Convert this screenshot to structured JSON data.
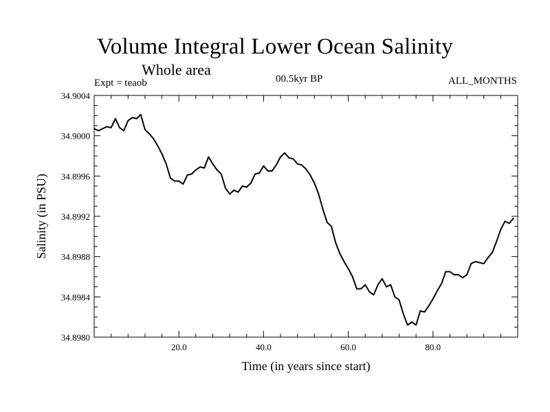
{
  "chart_data": {
    "type": "line",
    "title": "Volume Integral Lower Ocean Salinity",
    "subtitle": "Whole area",
    "left_label": "Expt = teaob",
    "center_label": "00.5kyr BP",
    "right_label": "ALL_MONTHS",
    "xlabel": "Time (in years since start)",
    "ylabel": "Salinity (in PSU)",
    "xlim": [
      0,
      100
    ],
    "ylim": [
      34.898,
      34.9004
    ],
    "x_tick_labels": [
      "20.0",
      "40.0",
      "60.0",
      "80.0"
    ],
    "x_tick_values": [
      20,
      40,
      60,
      80
    ],
    "y_tick_labels": [
      "34.8980",
      "34.8984",
      "34.8988",
      "34.8992",
      "34.8996",
      "34.9000",
      "34.9004"
    ],
    "y_tick_values": [
      34.898,
      34.8984,
      34.8988,
      34.8992,
      34.8996,
      34.9,
      34.9004
    ],
    "grid": false,
    "series": [
      {
        "name": "Salinity",
        "color": "#000000",
        "x": [
          0,
          1,
          2,
          3,
          4,
          5,
          6,
          7,
          8,
          9,
          10,
          11,
          12,
          13,
          14,
          15,
          16,
          17,
          18,
          19,
          20,
          21,
          22,
          23,
          24,
          25,
          26,
          27,
          28,
          29,
          30,
          31,
          32,
          33,
          34,
          35,
          36,
          37,
          38,
          39,
          40,
          41,
          42,
          43,
          44,
          45,
          46,
          47,
          48,
          49,
          50,
          51,
          52,
          53,
          54,
          55,
          56,
          57,
          58,
          59,
          60,
          61,
          62,
          63,
          64,
          65,
          66,
          67,
          68,
          69,
          70,
          71,
          72,
          73,
          74,
          75,
          76,
          77,
          78,
          79,
          80,
          81,
          82,
          83,
          84,
          85,
          86,
          87,
          88,
          89,
          90,
          91,
          92,
          93,
          94,
          95,
          96,
          97,
          98,
          99
        ],
        "values": [
          34.90007,
          34.90005,
          34.90007,
          34.90009,
          34.90008,
          34.90017,
          34.90008,
          34.90005,
          34.90015,
          34.90018,
          34.90017,
          34.90021,
          34.90006,
          34.90002,
          34.89997,
          34.8999,
          34.89982,
          34.89972,
          34.89958,
          34.89955,
          34.89955,
          34.89952,
          34.89961,
          34.89962,
          34.89966,
          34.89969,
          34.89968,
          34.89979,
          34.89972,
          34.89966,
          34.89962,
          34.89948,
          34.89942,
          34.89946,
          34.89944,
          34.8995,
          34.89949,
          34.89953,
          34.89962,
          34.89963,
          34.8997,
          34.89965,
          34.89965,
          34.89971,
          34.89979,
          34.89983,
          34.89978,
          34.89977,
          34.89972,
          34.89971,
          34.89967,
          34.89961,
          34.89953,
          34.89942,
          34.89927,
          34.89914,
          34.8991,
          34.89894,
          34.89883,
          34.89875,
          34.89868,
          34.8986,
          34.89848,
          34.89848,
          34.89852,
          34.89845,
          34.89842,
          34.89852,
          34.89858,
          34.8985,
          34.89852,
          34.8984,
          34.89837,
          34.89823,
          34.89812,
          34.89815,
          34.89812,
          34.89826,
          34.89825,
          34.89831,
          34.89838,
          34.89846,
          34.89853,
          34.89865,
          34.89865,
          34.89862,
          34.89862,
          34.89859,
          34.89862,
          34.89873,
          34.89875,
          34.89874,
          34.89873,
          34.89879,
          34.89884,
          34.89895,
          34.89907,
          34.89915,
          34.89913,
          34.89918
        ]
      }
    ]
  }
}
